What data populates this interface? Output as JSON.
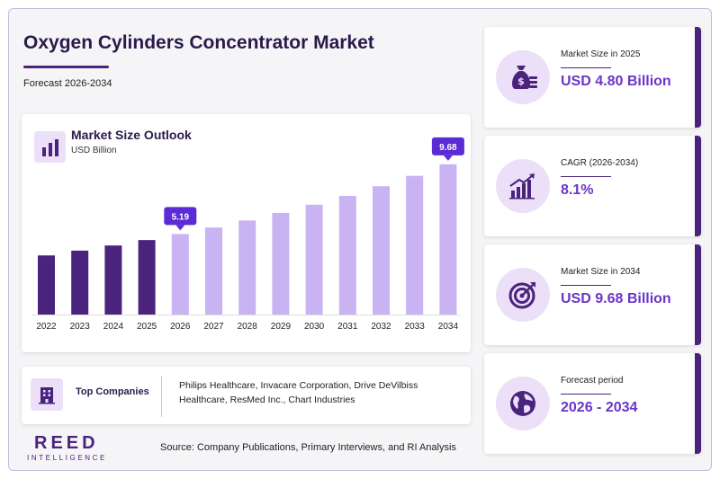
{
  "header": {
    "title": "Oxygen Cylinders Concentrator Market",
    "subtitle": "Forecast 2026-2034"
  },
  "chart_card": {
    "title": "Market Size Outlook",
    "unit": "USD Billion",
    "icon": "bar-chart-icon"
  },
  "chart_data": {
    "type": "bar",
    "title": "Market Size Outlook",
    "ylabel": "USD Billion",
    "categories": [
      "2022",
      "2023",
      "2024",
      "2025",
      "2026",
      "2027",
      "2028",
      "2029",
      "2030",
      "2031",
      "2032",
      "2033",
      "2034"
    ],
    "values": [
      3.81,
      4.12,
      4.45,
      4.8,
      5.19,
      5.61,
      6.06,
      6.55,
      7.08,
      7.65,
      8.27,
      8.94,
      9.68
    ],
    "data_labels": [
      {
        "category": "2026",
        "text": "5.19"
      },
      {
        "category": "2034",
        "text": "9.68"
      }
    ],
    "ylim": [
      0,
      10.6
    ],
    "historical_color": "#4a237d",
    "forecast_color": "#c9b3f2",
    "label_color": "#5b2bd6",
    "grid": false
  },
  "companies": {
    "label": "Top Companies",
    "list": "Philips Healthcare, Invacare Corporation, Drive DeVilbiss Healthcare, ResMed Inc., Chart Industries",
    "icon": "building-icon"
  },
  "footer": {
    "logo_main": "REED",
    "logo_sub": "INTELLIGENCE",
    "source": "Source: Company Publications, Primary Interviews, and RI Analysis"
  },
  "kpis": [
    {
      "label": "Market Size in 2025",
      "value": "USD 4.80 Billion",
      "icon": "money-bag-icon"
    },
    {
      "label": "CAGR (2026-2034)",
      "value": "8.1%",
      "icon": "growth-chart-icon"
    },
    {
      "label": "Market Size in 2034",
      "value": "USD 9.68 Billion",
      "icon": "target-icon"
    },
    {
      "label": "Forecast period",
      "value": "2026 - 2034",
      "icon": "globe-icon"
    }
  ],
  "colors": {
    "accent": "#4a237d",
    "highlight": "#6a35c8",
    "icon_bg": "#ecdff8"
  }
}
